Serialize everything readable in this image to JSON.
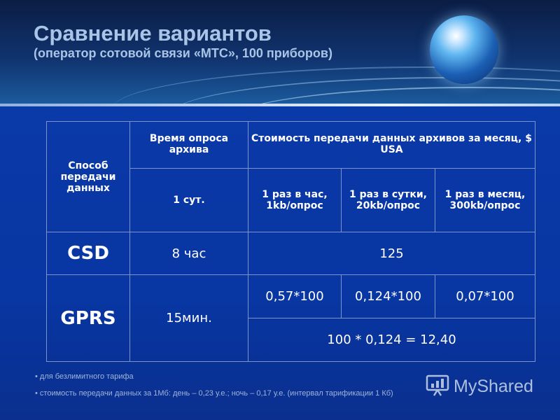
{
  "slide": {
    "title": "Сравнение вариантов",
    "subtitle": "(оператор сотовой связи «МТС», 100 приборов)"
  },
  "table": {
    "header": {
      "method": "Способ передачи данных",
      "poll_time": "Время опроса архива",
      "cost": "Стоимость передачи данных архивов за месяц, $ USA"
    },
    "subheader": {
      "day": "1 сут.",
      "hourly": "1 раз в час, 1kb/опрос",
      "daily": "1 раз в сутки, 20kb/опрос",
      "monthly": "1 раз в месяц, 300kb/опрос"
    },
    "rows": [
      {
        "method": "CSD",
        "poll_time": "8 час",
        "cost": "125"
      },
      {
        "method": "GPRS",
        "poll_time": "15мин.",
        "costs": [
          "0,57*100",
          "0,124*100",
          "0,07*100"
        ],
        "summary": "100 * 0,124 = 12,40"
      }
    ]
  },
  "notes": [
    "• для безлимитного тарифа",
    "• стоимость передачи данных за 1Мб: день – 0,23 у.е.; ночь – 0,17 у.е. (интервал тарификации 1 Кб)"
  ],
  "watermark": {
    "icon": "presentation-board-icon",
    "text": "MyShared"
  }
}
